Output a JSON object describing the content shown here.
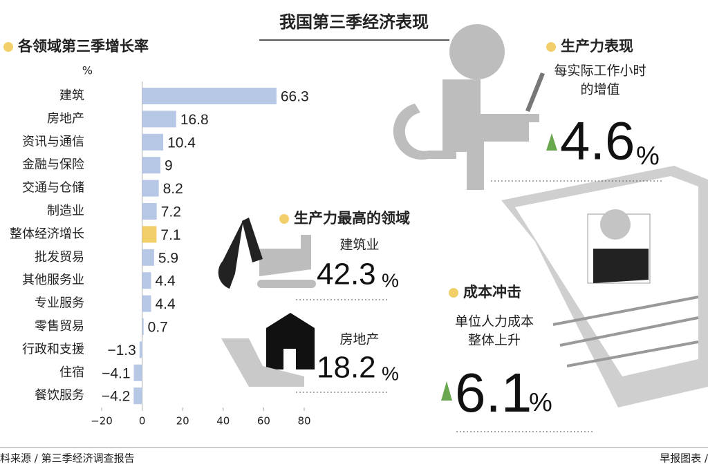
{
  "title": "我国第三季经济表现",
  "chart_data": {
    "type": "hbar",
    "title": "各领域第三季增长率",
    "unit": "%",
    "categories": [
      "建筑",
      "房地产",
      "资讯与通信",
      "金融与保险",
      "交通与仓储",
      "制造业",
      "整体经济增长",
      "批发贸易",
      "其他服务业",
      "专业服务",
      "零售贸易",
      "行政和支援",
      "住宿",
      "餐饮服务"
    ],
    "values": [
      66.3,
      16.8,
      10.4,
      9,
      8.2,
      7.2,
      7.1,
      5.9,
      4.4,
      4.4,
      0.7,
      -1.3,
      -4.1,
      -4.2
    ],
    "value_labels": [
      "66.3",
      "16.8",
      "10.4",
      "9",
      "8.2",
      "7.2",
      "7.1",
      "5.9",
      "4.4",
      "4.4",
      "0.7",
      "−1.3",
      "−4.1",
      "−4.2"
    ],
    "colors": [
      "#b7c7e6",
      "#b7c7e6",
      "#b7c7e6",
      "#b7c7e6",
      "#b7c7e6",
      "#b7c7e6",
      "#f3cf6a",
      "#b7c7e6",
      "#b7c7e6",
      "#b7c7e6",
      "#b7c7e6",
      "#b7c7e6",
      "#b7c7e6",
      "#b7c7e6"
    ],
    "xlim": [
      -20,
      80
    ],
    "xticks": [
      {
        "value": -20,
        "label": "−20"
      },
      0,
      20,
      40,
      60,
      80
    ]
  },
  "productivity": {
    "heading": "生产力表现",
    "desc": [
      "每实际工作小时",
      "的增值"
    ],
    "value": 4.6,
    "unit": "%"
  },
  "top_sectors": {
    "heading": "生产力最高的领域",
    "items": [
      {
        "name": "建筑业",
        "value": "42.3",
        "unit": "%"
      },
      {
        "name": "房地产",
        "value": "18.2",
        "unit": "%"
      }
    ]
  },
  "cost": {
    "heading": "成本冲击",
    "desc": [
      "单位人力成本",
      "整体上升"
    ],
    "value": 6.1,
    "unit": "%"
  },
  "footer": {
    "source": "料来源 / 第三季经济调查报告",
    "credit": "早报图表 /"
  }
}
